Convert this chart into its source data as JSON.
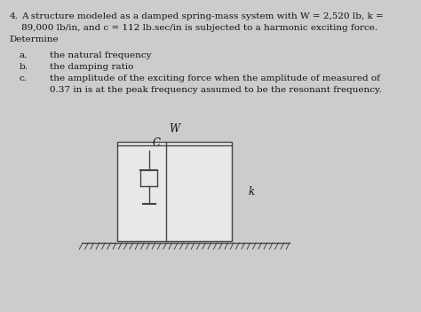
{
  "background_color": "#cccccc",
  "title_number": "4.",
  "title_line1": "A structure modeled as a damped spring-mass system with W = 2,520 lb, k =",
  "title_line2": "89,000 lb/in, and c = 112 lb.sec/in is subjected to a harmonic exciting force.",
  "title_line3": "Determine",
  "item_a_label": "a.",
  "item_a_text": "the natural frequency",
  "item_b_label": "b.",
  "item_b_text": "the damping ratio",
  "item_c_label": "c.",
  "item_c_text1": "the amplitude of the exciting force when the amplitude of measured of",
  "item_c_text2": "0.37 in is at the peak frequency assumed to be the resonant frequency.",
  "label_W": "W",
  "label_C": "C",
  "label_k": "k",
  "line_color": "#444444",
  "box_fill": "#e8e8e8",
  "font_size_body": 7.5,
  "font_size_diagram": 8.5,
  "text_color": "#111111"
}
